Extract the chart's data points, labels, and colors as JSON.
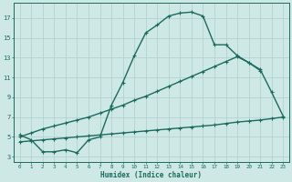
{
  "xlabel": "Humidex (Indice chaleur)",
  "xlim": [
    -0.5,
    23.5
  ],
  "ylim": [
    2.5,
    18.5
  ],
  "yticks": [
    3,
    5,
    7,
    9,
    11,
    13,
    15,
    17
  ],
  "xticks": [
    0,
    1,
    2,
    3,
    4,
    5,
    6,
    7,
    8,
    9,
    10,
    11,
    12,
    13,
    14,
    15,
    16,
    17,
    18,
    19,
    20,
    21,
    22,
    23
  ],
  "bg_color": "#cde8e5",
  "line_color": "#1a6b5e",
  "grid_color": "#aecfcc",
  "line1_x": [
    0,
    1,
    2,
    3,
    4,
    5,
    6,
    7,
    8,
    9,
    10,
    11,
    12,
    13,
    14,
    15,
    16,
    17,
    18,
    19,
    20,
    21
  ],
  "line1_y": [
    5.2,
    4.7,
    3.5,
    3.5,
    3.7,
    3.4,
    4.7,
    5.0,
    8.2,
    10.5,
    13.2,
    15.5,
    16.3,
    17.2,
    17.5,
    17.6,
    17.2,
    14.3,
    14.3,
    13.2,
    12.5,
    11.7
  ],
  "line2_x": [
    0,
    1,
    2,
    3,
    4,
    5,
    6,
    7,
    8,
    9,
    10,
    11,
    12,
    13,
    14,
    15,
    16,
    17,
    18,
    19,
    20,
    21,
    22,
    23
  ],
  "line2_y": [
    5.0,
    5.4,
    5.8,
    6.1,
    6.4,
    6.7,
    7.0,
    7.4,
    7.8,
    8.2,
    8.7,
    9.1,
    9.6,
    10.1,
    10.6,
    11.1,
    11.6,
    12.1,
    12.6,
    13.1,
    12.5,
    11.8,
    9.5,
    7.1
  ],
  "line3_x": [
    0,
    1,
    2,
    3,
    4,
    5,
    6,
    7,
    8,
    9,
    10,
    11,
    12,
    13,
    14,
    15,
    16,
    17,
    18,
    19,
    20,
    21,
    22,
    23
  ],
  "line3_y": [
    4.5,
    4.6,
    4.7,
    4.8,
    4.9,
    5.0,
    5.1,
    5.2,
    5.3,
    5.4,
    5.5,
    5.6,
    5.7,
    5.8,
    5.9,
    6.0,
    6.1,
    6.2,
    6.35,
    6.5,
    6.6,
    6.7,
    6.85,
    7.0
  ],
  "marker_size": 3.5,
  "line_width": 1.0
}
